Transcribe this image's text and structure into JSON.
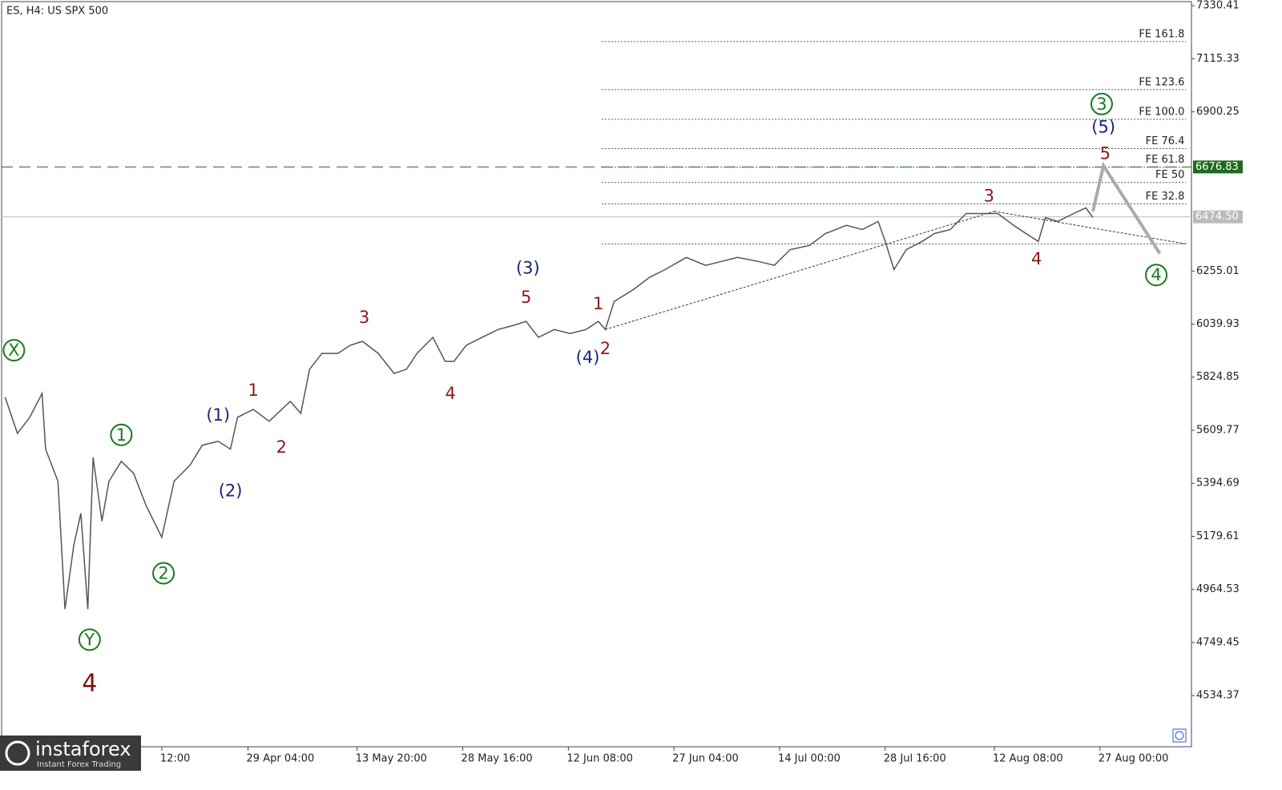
{
  "chart_data": {
    "type": "line",
    "title": "ES, H4:  US SPX 500",
    "logo": {
      "name": "instaforex",
      "tagline": "Instant Forex Trading"
    },
    "xlim": [
      0,
      676
    ],
    "ylim": [
      4327,
      7347
    ],
    "yticks": [
      7330.41,
      7115.33,
      6900.25,
      6676.83,
      6474.5,
      6255.01,
      6039.93,
      5824.85,
      5609.77,
      5394.69,
      5179.61,
      4964.53,
      4749.45,
      4534.37
    ],
    "xticks": [
      {
        "value": 91,
        "label": "12:00"
      },
      {
        "value": 140,
        "label": "29 Apr 04:00"
      },
      {
        "value": 202,
        "label": "13 May 20:00"
      },
      {
        "value": 262,
        "label": "28 May 16:00"
      },
      {
        "value": 322,
        "label": "12 Jun 08:00"
      },
      {
        "value": 382,
        "label": "27 Jun 04:00"
      },
      {
        "value": 442,
        "label": "14 Jul 00:00"
      },
      {
        "value": 502,
        "label": "28 Jul 16:00"
      },
      {
        "value": 564,
        "label": "12 Aug 08:00"
      },
      {
        "value": 624,
        "label": "27 Aug 00:00"
      }
    ],
    "series": [
      {
        "name": "price",
        "color": "#555555",
        "x": [
          2,
          9,
          16,
          23,
          25,
          32,
          36,
          41,
          45,
          49,
          52,
          57,
          61,
          68,
          75,
          82,
          91,
          98,
          107,
          114,
          123,
          130,
          134,
          143,
          152,
          164,
          170,
          175,
          182,
          191,
          198,
          205,
          214,
          223,
          230,
          236,
          245,
          252,
          257,
          264,
          273,
          282,
          291,
          298,
          305,
          314,
          323,
          332,
          339,
          343,
          348,
          359,
          368,
          377,
          389,
          400,
          409,
          418,
          430,
          439,
          448,
          459,
          468,
          480,
          489,
          498,
          502,
          507,
          514,
          523,
          530,
          539,
          548,
          557,
          566,
          575,
          582,
          589,
          593,
          600,
          609,
          616,
          620
        ],
        "values": [
          5743,
          5597,
          5662,
          5759,
          5533,
          5403,
          4885,
          5144,
          5273,
          4885,
          5500,
          5241,
          5403,
          5484,
          5435,
          5306,
          5176,
          5403,
          5468,
          5549,
          5565,
          5533,
          5662,
          5694,
          5646,
          5727,
          5678,
          5857,
          5921,
          5921,
          5954,
          5970,
          5921,
          5840,
          5857,
          5921,
          5986,
          5889,
          5889,
          5954,
          5986,
          6018,
          6035,
          6051,
          5986,
          6018,
          6002,
          6018,
          6051,
          6018,
          6132,
          6180,
          6229,
          6261,
          6310,
          6278,
          6294,
          6310,
          6294,
          6278,
          6342,
          6359,
          6407,
          6440,
          6423,
          6456,
          6375,
          6261,
          6342,
          6375,
          6407,
          6423,
          6488,
          6488,
          6488,
          6440,
          6407,
          6375,
          6472,
          6456,
          6488,
          6511,
          6472
        ]
      },
      {
        "name": "projection",
        "color": "#aaaaaa",
        "x": [
          620,
          626,
          658
        ],
        "values": [
          6497,
          6682,
          6326
        ]
      }
    ],
    "fib_levels": {
      "x": [
        341,
        673
      ],
      "color": "#555555",
      "levels": [
        {
          "value": 7185,
          "label": "FE 161.8"
        },
        {
          "value": 6990,
          "label": "FE 123.6"
        },
        {
          "value": 6870,
          "label": "FE 100.0"
        },
        {
          "value": 6751,
          "label": "FE 76.4"
        },
        {
          "value": 6676,
          "label": "FE 61.8"
        },
        {
          "value": 6614,
          "label": "FE 50"
        },
        {
          "value": 6527,
          "label": "FE 32.8"
        },
        {
          "value": 6365
        }
      ]
    },
    "hlines": [
      {
        "value": 6676.83,
        "label": "6676.83",
        "color": "#1e6b1e",
        "dash": true
      },
      {
        "value": 6474.5,
        "label": "6474.50",
        "color": "#bbbbbb",
        "dash": false
      }
    ],
    "trendlines": [
      {
        "x": [
          343,
          564
        ],
        "values": [
          6018,
          6497
        ]
      },
      {
        "x": [
          564,
          673
        ],
        "values": [
          6497,
          6365
        ]
      }
    ],
    "annotations": [
      {
        "text": "X",
        "x": 7,
        "y": 5934,
        "color": "#1a7a1a",
        "circle": true
      },
      {
        "text": "Y",
        "x": 50,
        "y": 4761,
        "color": "#1a7a1a",
        "circle": true
      },
      {
        "text": "4",
        "x": 50,
        "y": 4583,
        "color": "#7a1010",
        "big": true
      },
      {
        "text": "1",
        "x": 68,
        "y": 5591,
        "color": "#1a7a1a",
        "circle": true
      },
      {
        "text": "2",
        "x": 92,
        "y": 5030,
        "color": "#1a7a1a",
        "circle": true
      },
      {
        "text": "(1)",
        "x": 123,
        "y": 5672,
        "color": "#1a237e"
      },
      {
        "text": "(2)",
        "x": 130,
        "y": 5364,
        "color": "#1a237e"
      },
      {
        "text": "1",
        "x": 143,
        "y": 5772,
        "color": "#8b1a1a"
      },
      {
        "text": "2",
        "x": 159,
        "y": 5542,
        "color": "#8b1a1a"
      },
      {
        "text": "3",
        "x": 206,
        "y": 6067,
        "color": "#8b1a1a"
      },
      {
        "text": "4",
        "x": 255,
        "y": 5759,
        "color": "#8b1a1a"
      },
      {
        "text": "(3)",
        "x": 299,
        "y": 6268,
        "color": "#1a237e"
      },
      {
        "text": "5",
        "x": 298,
        "y": 6148,
        "color": "#8b1a1a"
      },
      {
        "text": "1",
        "x": 339,
        "y": 6122,
        "color": "#8b1a1a"
      },
      {
        "text": "2",
        "x": 343,
        "y": 5941,
        "color": "#8b1a1a"
      },
      {
        "text": "(4)",
        "x": 333,
        "y": 5905,
        "color": "#1a237e"
      },
      {
        "text": "3",
        "x": 561,
        "y": 6559,
        "color": "#8b1a1a"
      },
      {
        "text": "4",
        "x": 588,
        "y": 6304,
        "color": "#8b1a1a"
      },
      {
        "text": "3",
        "x": 625,
        "y": 6932,
        "color": "#1a7a1a",
        "circle": true
      },
      {
        "text": "(5)",
        "x": 626,
        "y": 6838,
        "color": "#1a237e"
      },
      {
        "text": "5",
        "x": 627,
        "y": 6731,
        "color": "#8b1a1a"
      },
      {
        "text": "4",
        "x": 656,
        "y": 6239,
        "color": "#1a7a1a",
        "circle": true
      }
    ]
  }
}
